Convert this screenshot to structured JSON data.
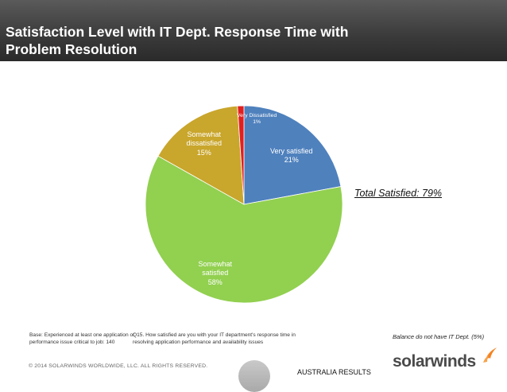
{
  "header": {
    "title_line1": "Satisfaction Level with IT Dept. Response Time with",
    "title_line2": "Problem Resolution"
  },
  "chart_data": {
    "type": "pie",
    "slices": [
      {
        "label_lines": [
          "Very satisfied",
          "21%"
        ],
        "value": 21,
        "color": "#4f81bd"
      },
      {
        "label_lines": [
          "Somewhat",
          "satisfied",
          "58%"
        ],
        "value": 58,
        "color": "#92d050"
      },
      {
        "label_lines": [
          "Somewhat",
          "dissatisfied",
          "15%"
        ],
        "value": 15,
        "color": "#c9a62c"
      },
      {
        "label_lines": [
          "Very Dissatisfied",
          "1%"
        ],
        "value": 1,
        "color": "#e02020"
      }
    ],
    "start": "12 o'clock",
    "direction": "clockwise"
  },
  "annotations": {
    "total_satisfied": "Total Satisfied:  79%"
  },
  "footer": {
    "base_line1": "Base:  Experienced at least one  application or",
    "base_line2": "performance issue critical to job:  140",
    "question_line1": "Q15. How satisfied are you with your IT department's response time in",
    "question_line2": "resolving application performance and availability issues",
    "balance": "Balance do not have IT Dept. (5%)",
    "copyright": "© 2014 SOLARWINDS WORLDWIDE, LLC.  ALL RIGHTS RESERVED.",
    "region": "AUSTRALIA RESULTS",
    "logo_text": "solarwinds",
    "logo_color": "#f58220"
  }
}
